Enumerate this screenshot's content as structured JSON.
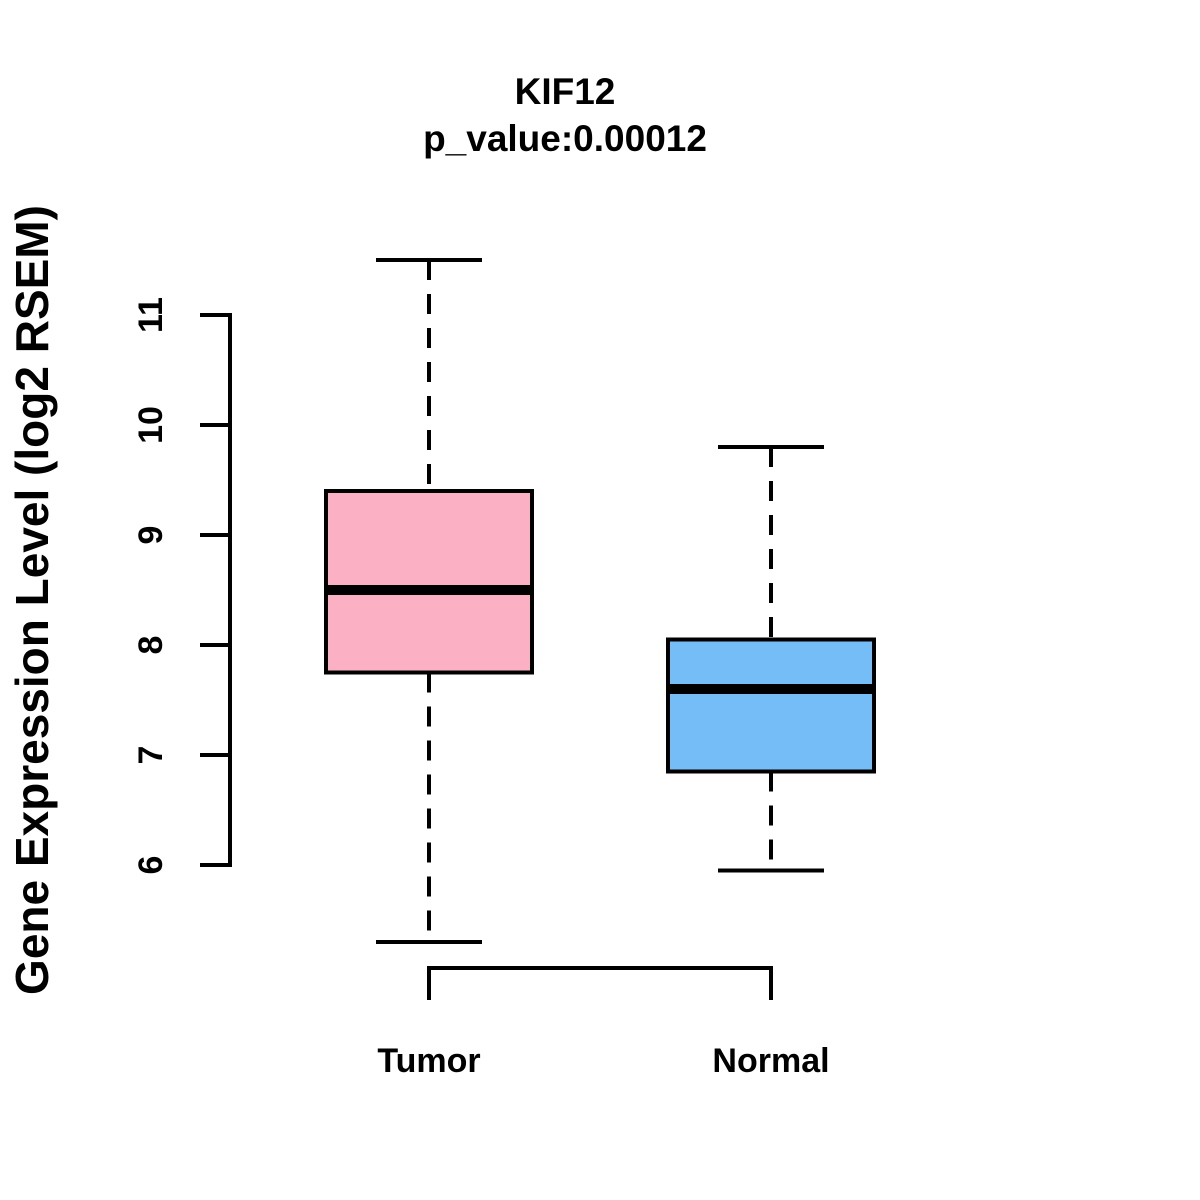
{
  "chart_data": {
    "type": "boxplot",
    "title": "KIF12",
    "subtitle": "p_value:0.00012",
    "ylabel": "Gene Expression Level (log2 RSEM)",
    "xlabel": "",
    "yticks": [
      6,
      7,
      8,
      9,
      10,
      11
    ],
    "ylim": [
      5.1,
      11.7
    ],
    "grid": false,
    "legend": "none",
    "background": "#FFFFFF",
    "stroke": "#000000",
    "categories": [
      "Tumor",
      "Normal"
    ],
    "groups": [
      {
        "label": "Tumor",
        "color": "#FBB1C3",
        "whisker_low": 5.3,
        "q1": 7.75,
        "median": 8.5,
        "q3": 9.4,
        "whisker_high": 11.5
      },
      {
        "label": "Normal",
        "color": "#74BDF7",
        "whisker_low": 5.95,
        "q1": 6.85,
        "median": 7.6,
        "q3": 8.05,
        "whisker_high": 9.8
      }
    ]
  }
}
